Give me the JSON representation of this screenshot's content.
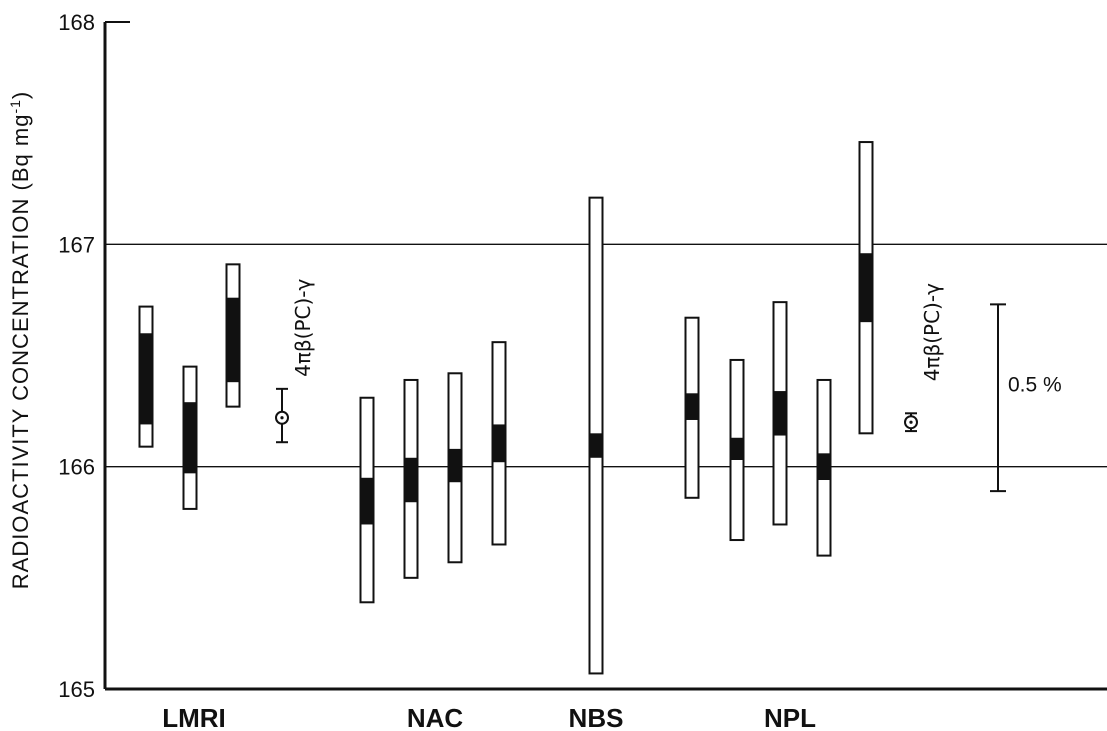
{
  "chart_data": {
    "type": "range-bar",
    "ylabel": "RADIOACTIVITY  CONCENTRATION  (Bq mg",
    "ylabel_superscript": "-1",
    "ylabel_close": ")",
    "ylim": [
      165,
      168
    ],
    "yticks": [
      "165",
      "166",
      "167",
      "168"
    ],
    "gridlines": [
      166,
      167
    ],
    "groups": [
      {
        "name": "LMRI",
        "bars": [
          {
            "outer": [
              166.09,
              166.72
            ],
            "inner": [
              166.19,
              166.6
            ]
          },
          {
            "outer": [
              165.81,
              166.45
            ],
            "inner": [
              165.97,
              166.29
            ]
          },
          {
            "outer": [
              166.27,
              166.91
            ],
            "inner": [
              166.38,
              166.76
            ]
          }
        ],
        "point": {
          "value": 166.22,
          "low": 166.11,
          "high": 166.35,
          "label": "4πβ(PC)-γ"
        }
      },
      {
        "name": "NAC",
        "bars": [
          {
            "outer": [
              165.39,
              166.31
            ],
            "inner": [
              165.74,
              165.95
            ]
          },
          {
            "outer": [
              165.5,
              166.39
            ],
            "inner": [
              165.84,
              166.04
            ]
          },
          {
            "outer": [
              165.57,
              166.42
            ],
            "inner": [
              165.93,
              166.08
            ]
          },
          {
            "outer": [
              165.65,
              166.56
            ],
            "inner": [
              166.02,
              166.19
            ]
          }
        ]
      },
      {
        "name": "NBS",
        "bars": [
          {
            "outer": [
              165.07,
              167.21
            ],
            "inner": [
              166.04,
              166.15
            ]
          }
        ]
      },
      {
        "name": "NPL",
        "bars": [
          {
            "outer": [
              165.86,
              166.67
            ],
            "inner": [
              166.21,
              166.33
            ]
          },
          {
            "outer": [
              165.67,
              166.48
            ],
            "inner": [
              166.03,
              166.13
            ]
          },
          {
            "outer": [
              165.74,
              166.74
            ],
            "inner": [
              166.14,
              166.34
            ]
          },
          {
            "outer": [
              165.6,
              166.39
            ],
            "inner": [
              165.94,
              166.06
            ]
          },
          {
            "outer": [
              166.15,
              167.46
            ],
            "inner": [
              166.65,
              166.96
            ]
          }
        ],
        "point": {
          "value": 166.2,
          "low": 166.16,
          "high": 166.24,
          "label": "4πβ(PC)-γ"
        }
      }
    ],
    "scale_bar": {
      "low": 165.89,
      "high": 166.73,
      "label": "0.5 %"
    }
  }
}
